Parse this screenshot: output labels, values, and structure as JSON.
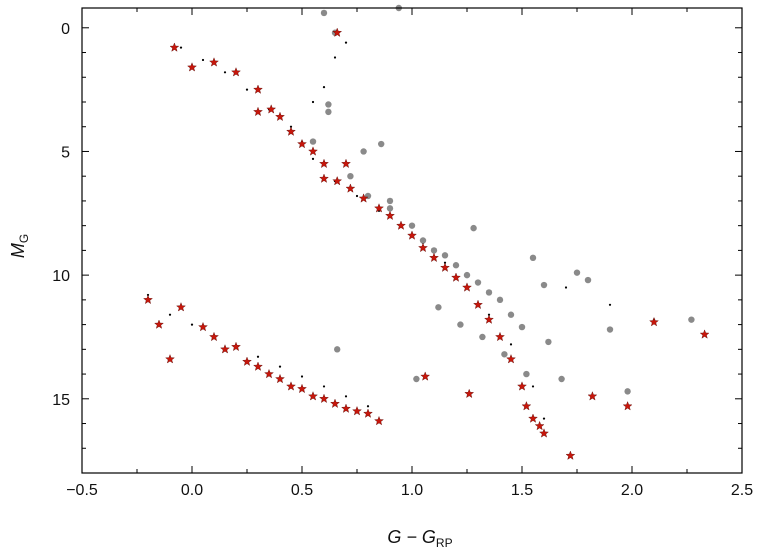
{
  "chart_data": {
    "type": "scatter",
    "title": "",
    "xlabel": "G − G",
    "xlabel_sub": "RP",
    "ylabel": "M",
    "ylabel_sub": "G",
    "xlim": [
      -0.5,
      2.5
    ],
    "ylim": [
      18.0,
      -0.8
    ],
    "y_inverted": true,
    "grid": false,
    "legend": "none",
    "x_ticks": [
      -0.5,
      0.0,
      0.5,
      1.0,
      1.5,
      2.0,
      2.5
    ],
    "x_tick_labels": [
      "−0.5",
      "0.0",
      "0.5",
      "1.0",
      "1.5",
      "2.0",
      "2.5"
    ],
    "y_ticks": [
      0,
      5,
      10,
      15
    ],
    "y_tick_labels": [
      "0",
      "5",
      "10",
      "15"
    ],
    "colors": {
      "background_field": "#000000",
      "gray_points": "#8a8a8a",
      "red_stars": "#c8160b",
      "red_star_edge": "#5a0a05"
    },
    "series": [
      {
        "marker": "dot-small",
        "color": "#000000",
        "x": [
          -0.05,
          0.05,
          0.15,
          0.25,
          0.35,
          0.45,
          0.5,
          0.55,
          0.65,
          0.75,
          0.85,
          0.95,
          1.05,
          1.15,
          1.25,
          1.35,
          1.45,
          1.55,
          1.6,
          0.55,
          0.6,
          0.65,
          0.7,
          -0.2,
          -0.1,
          0.0,
          0.1,
          0.2,
          0.3,
          0.4,
          0.5,
          0.6,
          0.7,
          0.8,
          1.7,
          1.9,
          2.1
        ],
        "y": [
          0.8,
          1.3,
          1.8,
          2.5,
          3.3,
          4.0,
          4.6,
          5.3,
          6.2,
          6.8,
          7.4,
          8.0,
          8.7,
          9.5,
          10.5,
          11.6,
          12.8,
          14.5,
          15.8,
          3.0,
          2.4,
          1.2,
          0.6,
          10.8,
          11.6,
          12.0,
          12.5,
          12.9,
          13.3,
          13.7,
          14.1,
          14.5,
          14.9,
          15.3,
          10.5,
          11.2,
          11.8
        ]
      },
      {
        "marker": "circle",
        "color": "#8a8a8a",
        "x": [
          0.6,
          0.62,
          0.78,
          0.86,
          0.94,
          0.65,
          0.72,
          0.8,
          0.9,
          1.0,
          1.05,
          1.1,
          1.15,
          1.2,
          1.25,
          1.3,
          1.35,
          1.4,
          1.45,
          1.5,
          0.55,
          0.9,
          1.28,
          1.55,
          1.6,
          1.75,
          1.8,
          1.62,
          0.66,
          0.62,
          1.02,
          1.12,
          1.22,
          1.32,
          1.42,
          1.52,
          1.9,
          2.27,
          1.98,
          1.68
        ],
        "y": [
          -0.6,
          3.4,
          5.0,
          4.7,
          -0.8,
          0.2,
          6.0,
          6.8,
          7.3,
          8.0,
          8.6,
          9.0,
          9.2,
          9.6,
          10.0,
          10.3,
          10.7,
          11.0,
          11.6,
          12.1,
          4.6,
          7.0,
          8.1,
          9.3,
          10.4,
          9.9,
          10.2,
          12.7,
          13.0,
          3.1,
          14.2,
          11.3,
          12.0,
          12.5,
          13.2,
          14.0,
          12.2,
          11.8,
          14.7,
          14.2
        ],
        "legend_name": ""
      },
      {
        "marker": "star",
        "color": "#c8160b",
        "x": [
          -0.08,
          0.0,
          0.1,
          0.2,
          0.3,
          0.36,
          0.4,
          0.45,
          0.5,
          0.55,
          0.6,
          0.66,
          0.72,
          0.78,
          0.85,
          0.9,
          0.95,
          1.0,
          1.05,
          1.1,
          1.15,
          1.2,
          1.25,
          1.3,
          1.35,
          1.4,
          1.45,
          1.5,
          1.52,
          1.55,
          1.58,
          1.6,
          -0.2,
          -0.15,
          -0.1,
          -0.05,
          0.05,
          0.1,
          0.15,
          0.2,
          0.25,
          0.3,
          0.35,
          0.4,
          0.45,
          0.5,
          0.55,
          0.6,
          0.65,
          0.7,
          0.75,
          0.8,
          0.85,
          0.7,
          0.6,
          0.3,
          2.1,
          2.33,
          1.98,
          1.72,
          1.82,
          0.66,
          1.26,
          1.06
        ],
        "y": [
          0.8,
          1.6,
          1.4,
          1.8,
          2.5,
          3.3,
          3.6,
          4.2,
          4.7,
          5.0,
          5.5,
          6.2,
          6.5,
          6.9,
          7.3,
          7.6,
          8.0,
          8.4,
          8.9,
          9.3,
          9.7,
          10.1,
          10.5,
          11.2,
          11.8,
          12.5,
          13.4,
          14.5,
          15.3,
          15.8,
          16.1,
          16.4,
          11.0,
          12.0,
          13.4,
          11.3,
          12.1,
          12.5,
          13.0,
          12.9,
          13.5,
          13.7,
          14.0,
          14.2,
          14.5,
          14.6,
          14.9,
          15.0,
          15.2,
          15.4,
          15.5,
          15.6,
          15.9,
          5.5,
          6.1,
          3.4,
          11.9,
          12.4,
          15.3,
          17.3,
          14.9,
          0.2,
          14.8,
          14.1
        ],
        "legend_name": ""
      }
    ]
  }
}
